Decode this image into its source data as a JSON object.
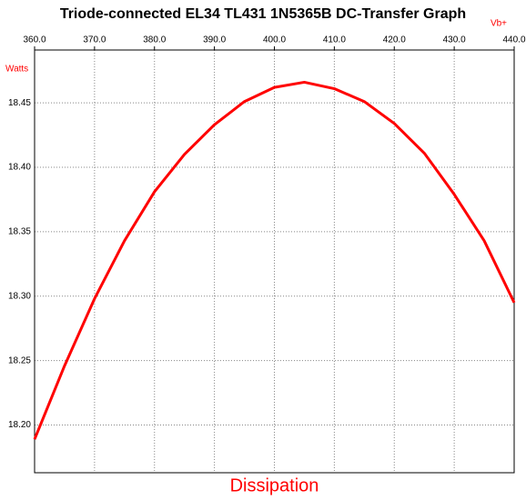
{
  "chart_data": {
    "type": "line",
    "title": "Triode-connected EL34 TL431 1N5365B DC-Transfer Graph",
    "xlabel": "Vb+",
    "ylabel": "Watts",
    "x": [
      360,
      365,
      370,
      375,
      380,
      385,
      390,
      395,
      400,
      405,
      410,
      415,
      420,
      425,
      430,
      435,
      440
    ],
    "series": [
      {
        "name": "Dissipation",
        "color": "#ff0000",
        "values": [
          18.189,
          18.246,
          18.298,
          18.343,
          18.381,
          18.41,
          18.433,
          18.451,
          18.462,
          18.466,
          18.461,
          18.451,
          18.434,
          18.411,
          18.379,
          18.343,
          18.295
        ]
      }
    ],
    "xlim": [
      360,
      440
    ],
    "xticks": [
      {
        "value": 360,
        "label": "360.0"
      },
      {
        "value": 370,
        "label": "370.0"
      },
      {
        "value": 380,
        "label": "380.0"
      },
      {
        "value": 390,
        "label": "390.0"
      },
      {
        "value": 400,
        "label": "400.0"
      },
      {
        "value": 410,
        "label": "410.0"
      },
      {
        "value": 420,
        "label": "420.0"
      },
      {
        "value": 430,
        "label": "430.0"
      },
      {
        "value": 440,
        "label": "440.0"
      }
    ],
    "ylim": [
      18.163,
      18.491
    ],
    "yticks": [
      {
        "value": 18.2,
        "label": "18.20"
      },
      18.25,
      {
        "value": 18.3,
        "label": "18.30"
      },
      18.35,
      {
        "value": 18.4,
        "label": "18.40"
      },
      18.45
    ],
    "grid": true
  }
}
